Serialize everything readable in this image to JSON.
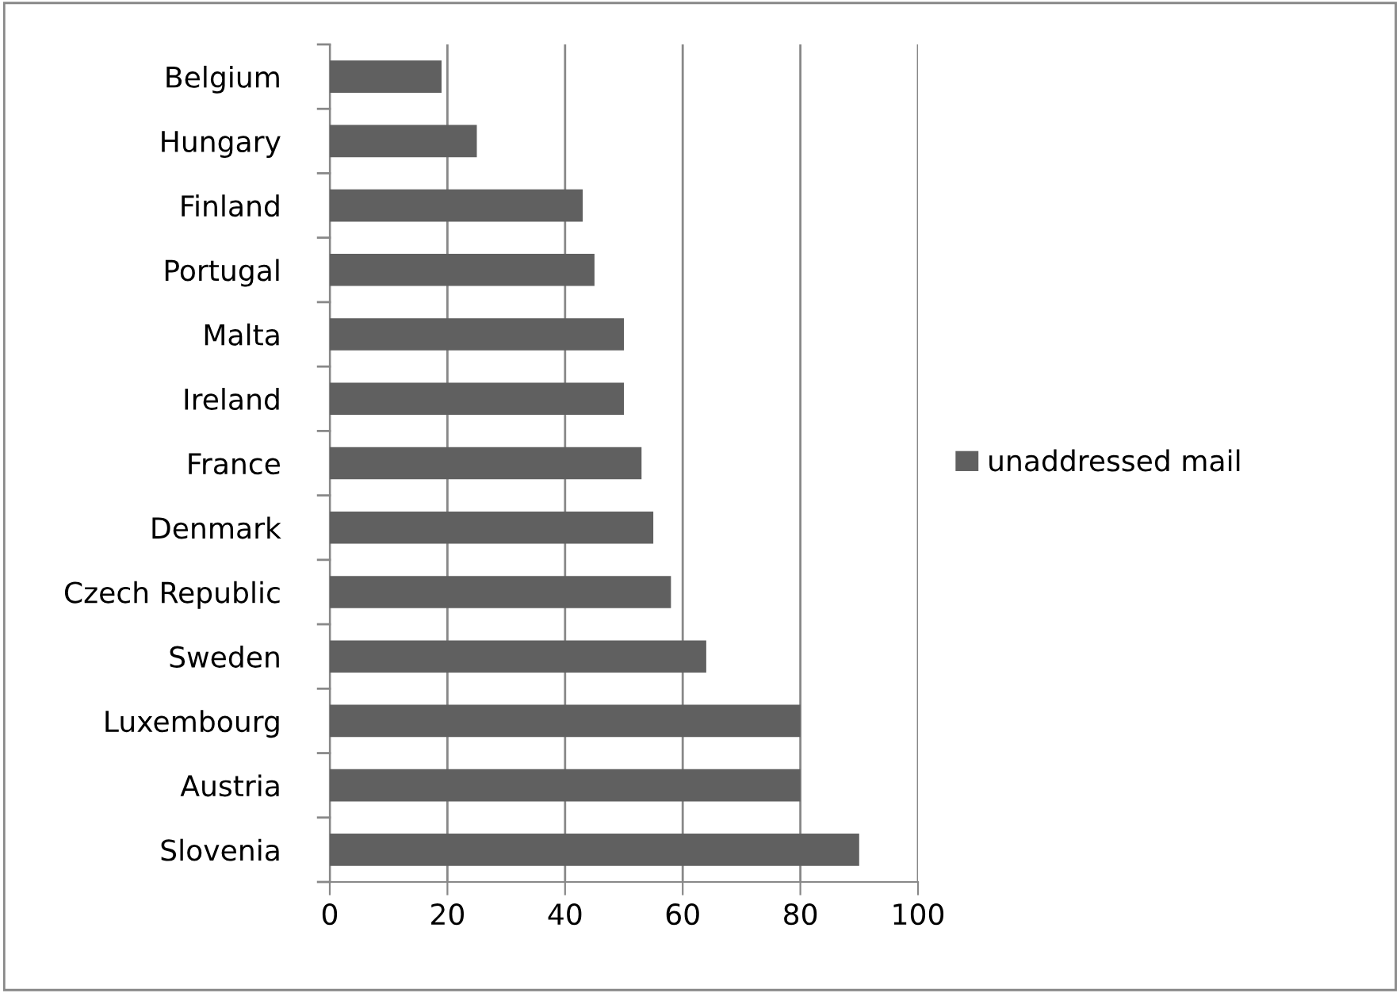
{
  "chart_data": {
    "type": "bar",
    "orientation": "horizontal",
    "categories": [
      "Belgium",
      "Hungary",
      "Finland",
      "Portugal",
      "Malta",
      "Ireland",
      "France",
      "Denmark",
      "Czech Republic",
      "Sweden",
      "Luxembourg",
      "Austria",
      "Slovenia"
    ],
    "series": [
      {
        "name": "unaddressed mail",
        "color": "#606060",
        "values": [
          19,
          25,
          43,
          45,
          50,
          50,
          53,
          55,
          58,
          64,
          80,
          80,
          90
        ]
      }
    ],
    "xlim": [
      0,
      100
    ],
    "xticks": [
      0,
      20,
      40,
      60,
      80,
      100
    ],
    "grid": "x",
    "legend": "right"
  }
}
